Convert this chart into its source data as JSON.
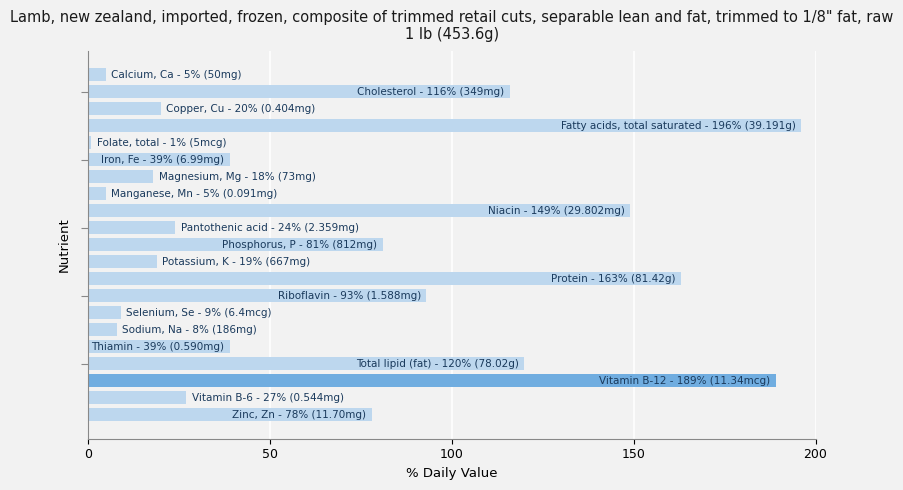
{
  "title": "Lamb, new zealand, imported, frozen, composite of trimmed retail cuts, separable lean and fat, trimmed to 1/8\" fat, raw\n1 lb (453.6g)",
  "xlabel": "% Daily Value",
  "ylabel": "Nutrient",
  "nutrients": [
    "Calcium, Ca - 5% (50mg)",
    "Cholesterol - 116% (349mg)",
    "Copper, Cu - 20% (0.404mg)",
    "Fatty acids, total saturated - 196% (39.191g)",
    "Folate, total - 1% (5mcg)",
    "Iron, Fe - 39% (6.99mg)",
    "Magnesium, Mg - 18% (73mg)",
    "Manganese, Mn - 5% (0.091mg)",
    "Niacin - 149% (29.802mg)",
    "Pantothenic acid - 24% (2.359mg)",
    "Phosphorus, P - 81% (812mg)",
    "Potassium, K - 19% (667mg)",
    "Protein - 163% (81.42g)",
    "Riboflavin - 93% (1.588mg)",
    "Selenium, Se - 9% (6.4mcg)",
    "Sodium, Na - 8% (186mg)",
    "Thiamin - 39% (0.590mg)",
    "Total lipid (fat) - 120% (78.02g)",
    "Vitamin B-12 - 189% (11.34mcg)",
    "Vitamin B-6 - 27% (0.544mg)",
    "Zinc, Zn - 78% (11.70mg)"
  ],
  "values": [
    5,
    116,
    20,
    196,
    1,
    39,
    18,
    5,
    149,
    24,
    81,
    19,
    163,
    93,
    9,
    8,
    39,
    120,
    189,
    27,
    78
  ],
  "bar_color": "#bdd7ee",
  "highlight_color": "#70ade0",
  "background_color": "#f2f2f2",
  "plot_bg_color": "#f2f2f2",
  "xlim": [
    0,
    200
  ],
  "xticks": [
    0,
    50,
    100,
    150,
    200
  ],
  "title_fontsize": 10.5,
  "axis_label_fontsize": 9.5,
  "tick_fontsize": 9,
  "bar_label_fontsize": 7.5,
  "label_threshold": 30,
  "label_color": "#1a3a5c"
}
